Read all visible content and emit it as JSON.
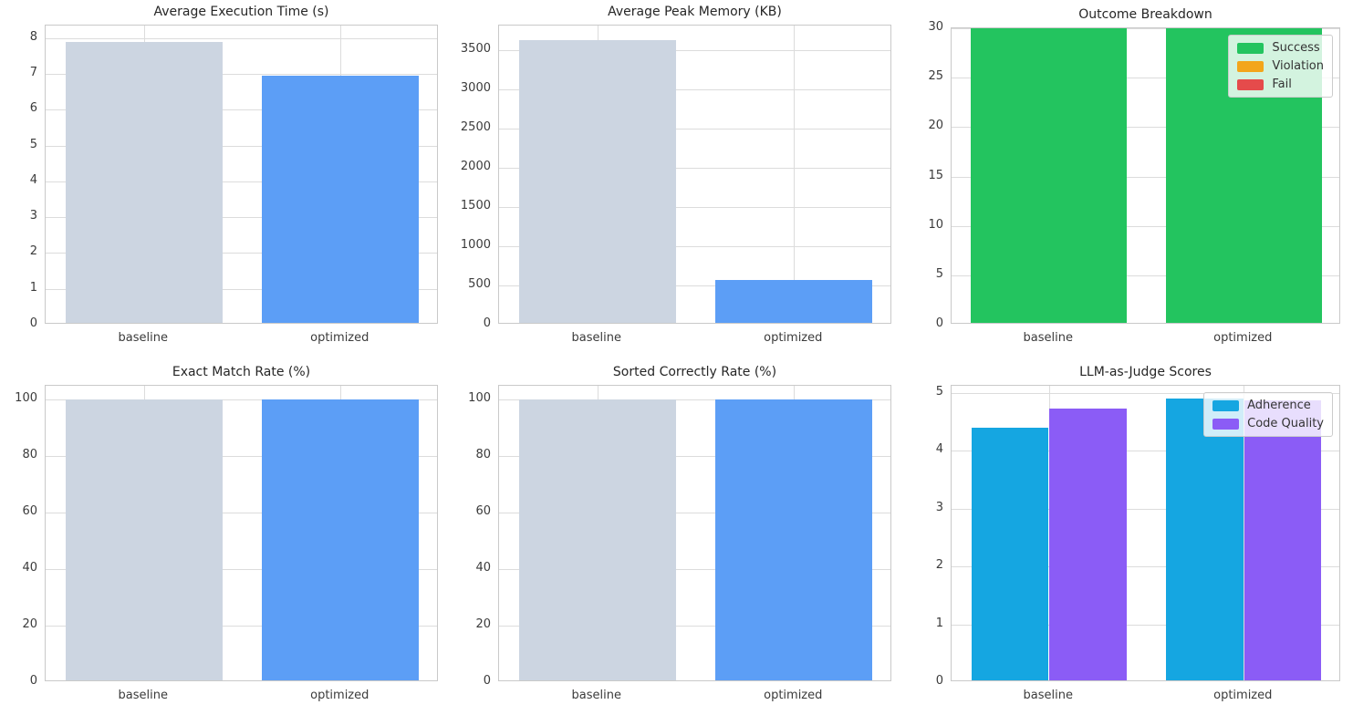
{
  "figure": {
    "background": "#ffffff",
    "grid_color": "#dcdcdc",
    "spine_color": "#c9c9c9",
    "tick_label_color": "#3b3b3b",
    "title_color": "#262626",
    "palette": {
      "baseline_bar": "#ccd5e1",
      "optimized_bar": "#5c9ef6",
      "success_green": "#23c45f",
      "violation_orange": "#f3a61b",
      "fail_red": "#e54b4b",
      "adherence_cyan": "#15a6e1",
      "code_quality_purple": "#8b5cf6"
    }
  },
  "chart_data": [
    {
      "id": "avg-execution-time",
      "type": "bar",
      "title": "Average Execution Time (s)",
      "categories": [
        "baseline",
        "optimized"
      ],
      "series": [
        {
          "name": null,
          "values": [
            7.88,
            6.95
          ],
          "colors": [
            "#ccd5e1",
            "#5c9ef6"
          ]
        }
      ],
      "ylim": [
        0,
        8.35
      ],
      "yticks": [
        0,
        1,
        2,
        3,
        4,
        5,
        6,
        7,
        8
      ],
      "grid": true,
      "legend": null
    },
    {
      "id": "avg-peak-memory",
      "type": "bar",
      "title": "Average Peak Memory (KB)",
      "categories": [
        "baseline",
        "optimized"
      ],
      "series": [
        {
          "name": null,
          "values": [
            3620,
            570
          ],
          "colors": [
            "#ccd5e1",
            "#5c9ef6"
          ]
        }
      ],
      "ylim": [
        0,
        3810
      ],
      "yticks": [
        0,
        500,
        1000,
        1500,
        2000,
        2500,
        3000,
        3500
      ],
      "grid": true,
      "legend": null
    },
    {
      "id": "outcome-breakdown",
      "type": "stacked-bar",
      "title": "Outcome Breakdown",
      "categories": [
        "baseline",
        "optimized"
      ],
      "series": [
        {
          "name": "Success",
          "values": [
            30,
            30
          ],
          "color": "#23c45f"
        },
        {
          "name": "Violation",
          "values": [
            0,
            0
          ],
          "color": "#f3a61b"
        },
        {
          "name": "Fail",
          "values": [
            0,
            0
          ],
          "color": "#e54b4b"
        }
      ],
      "ylim": [
        0,
        30
      ],
      "yticks": [
        0,
        5,
        10,
        15,
        20,
        25,
        30
      ],
      "grid": true,
      "legend": {
        "position": "top-right"
      }
    },
    {
      "id": "exact-match-rate",
      "type": "bar",
      "title": "Exact Match Rate (%)",
      "categories": [
        "baseline",
        "optimized"
      ],
      "series": [
        {
          "name": null,
          "values": [
            100,
            100
          ],
          "colors": [
            "#ccd5e1",
            "#5c9ef6"
          ]
        }
      ],
      "ylim": [
        0,
        105
      ],
      "yticks": [
        0,
        20,
        40,
        60,
        80,
        100
      ],
      "grid": true,
      "legend": null
    },
    {
      "id": "sorted-correctly-rate",
      "type": "bar",
      "title": "Sorted Correctly Rate (%)",
      "categories": [
        "baseline",
        "optimized"
      ],
      "series": [
        {
          "name": null,
          "values": [
            100,
            100
          ],
          "colors": [
            "#ccd5e1",
            "#5c9ef6"
          ]
        }
      ],
      "ylim": [
        0,
        105
      ],
      "yticks": [
        0,
        20,
        40,
        60,
        80,
        100
      ],
      "grid": true,
      "legend": null
    },
    {
      "id": "llm-as-judge-scores",
      "type": "grouped-bar",
      "title": "LLM-as-Judge Scores",
      "categories": [
        "baseline",
        "optimized"
      ],
      "series": [
        {
          "name": "Adherence",
          "values": [
            4.4,
            4.9
          ],
          "color": "#15a6e1"
        },
        {
          "name": "Code Quality",
          "values": [
            4.73,
            4.87
          ],
          "color": "#8b5cf6"
        }
      ],
      "ylim": [
        0,
        5.12
      ],
      "yticks": [
        0,
        1,
        2,
        3,
        4,
        5
      ],
      "grid": true,
      "legend": {
        "position": "top-right"
      }
    }
  ]
}
